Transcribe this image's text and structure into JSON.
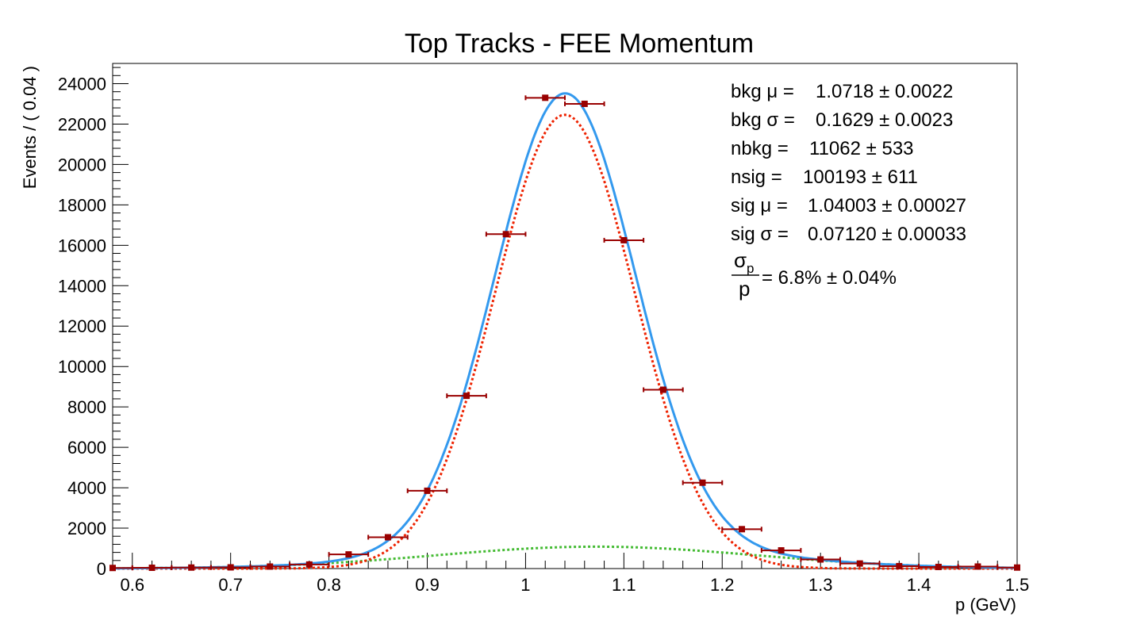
{
  "chart_data": {
    "type": "scatter",
    "title": "Top Tracks - FEE Momentum",
    "xlabel": "p (GeV)",
    "ylabel": "Events / ( 0.04 )",
    "xlim": [
      0.58,
      1.5
    ],
    "ylim": [
      0,
      25000
    ],
    "x_ticks": [
      0.6,
      0.7,
      0.8,
      0.9,
      1,
      1.1,
      1.2,
      1.3,
      1.4,
      1.5
    ],
    "x_tick_labels": [
      "0.6",
      "0.7",
      "0.8",
      "0.9",
      "1",
      "1.1",
      "1.2",
      "1.3",
      "1.4",
      "1.5"
    ],
    "y_ticks": [
      0,
      2000,
      4000,
      6000,
      8000,
      10000,
      12000,
      14000,
      16000,
      18000,
      20000,
      22000,
      24000
    ],
    "y_tick_labels": [
      "0",
      "2000",
      "4000",
      "6000",
      "8000",
      "10000",
      "12000",
      "14000",
      "16000",
      "18000",
      "20000",
      "22000",
      "24000"
    ],
    "grid": false,
    "bin_width": 0.04,
    "series": [
      {
        "kind": "points",
        "color": "#990000",
        "x": [
          0.58,
          0.62,
          0.66,
          0.7,
          0.74,
          0.78,
          0.82,
          0.86,
          0.9,
          0.94,
          0.98,
          1.02,
          1.06,
          1.1,
          1.14,
          1.18,
          1.22,
          1.26,
          1.3,
          1.34,
          1.38,
          1.42,
          1.46,
          1.5
        ],
        "y": [
          30,
          40,
          50,
          60,
          100,
          200,
          700,
          1550,
          3850,
          8550,
          16550,
          23300,
          23000,
          16250,
          8850,
          4250,
          1950,
          900,
          450,
          250,
          120,
          80,
          100,
          50
        ]
      },
      {
        "kind": "curve",
        "role": "total",
        "color": "#3399ee",
        "params": {
          "sig_mu": 1.04003,
          "sig_sigma": 0.0712,
          "nsig": 100193,
          "bkg_mu": 1.0718,
          "bkg_sigma": 0.1629,
          "nbkg": 11062
        }
      },
      {
        "kind": "curve",
        "role": "signal",
        "color": "#ee2200",
        "dashed": true,
        "params": {
          "mu": 1.04003,
          "sigma": 0.0712,
          "n": 100193
        }
      },
      {
        "kind": "curve",
        "role": "background",
        "color": "#44bb33",
        "dashed": true,
        "params": {
          "mu": 1.0718,
          "sigma": 0.1629,
          "n": 11062
        }
      }
    ],
    "annotations": {
      "bkg_mu": {
        "label": "bkg μ =",
        "value": "1.0718 ± 0.0022"
      },
      "bkg_sigma": {
        "label": "bkg σ =",
        "value": "0.1629 ± 0.0023"
      },
      "nbkg": {
        "label": "nbkg =",
        "value": "11062 ± 533"
      },
      "nsig": {
        "label": "nsig =",
        "value": "100193 ± 611"
      },
      "sig_mu": {
        "label": "sig μ =",
        "value": "1.04003 ± 0.00027"
      },
      "sig_sigma": {
        "label": "sig σ =",
        "value": "0.07120 ± 0.00033"
      },
      "resolution": {
        "numerator": "σ",
        "subscript": "p",
        "denominator": "p",
        "value": "= 6.8% ±  0.04%"
      }
    }
  }
}
